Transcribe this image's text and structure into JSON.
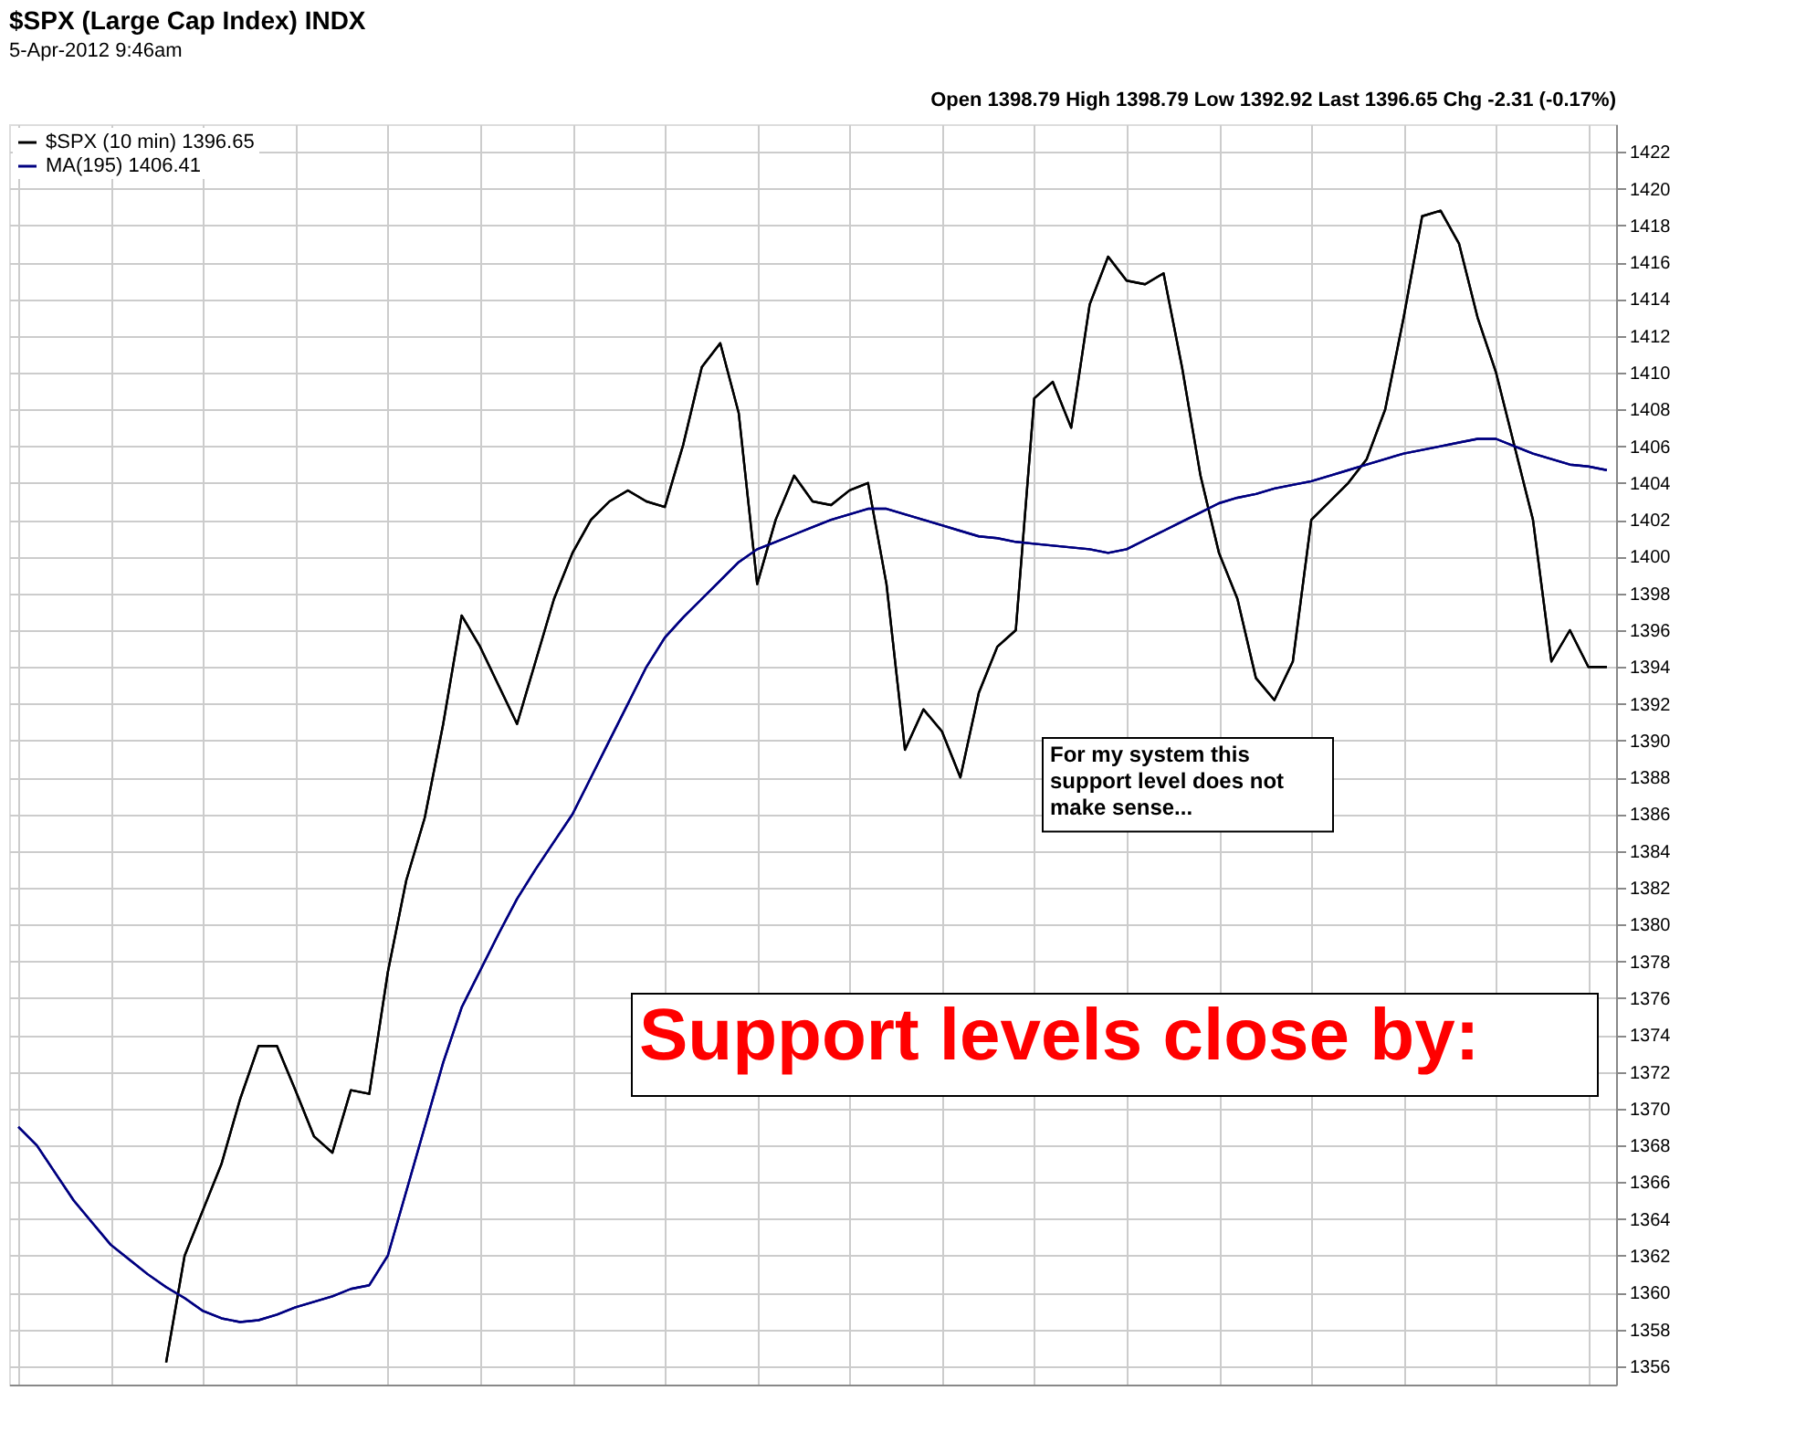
{
  "chart_data": {
    "type": "line",
    "title": "$SPX (Large Cap Index) INDX",
    "subtitle": "5-Apr-2012 9:46am",
    "annotations": [
      "Open 1398.79 High 1398.79 Low 1392.92 Last 1396.65 Chg -2.31 (-0.17%)",
      "For my system this support level does not make sense...",
      "Support levels close by:"
    ],
    "categories": [
      null,
      null,
      null,
      null,
      null,
      null,
      null,
      null,
      null,
      null,
      null,
      null,
      null,
      null,
      null,
      null,
      null,
      null,
      null,
      null,
      null,
      null,
      null,
      null,
      null,
      null,
      null,
      null,
      null,
      null,
      null,
      null,
      null,
      null,
      null,
      null,
      null,
      null,
      null,
      null,
      null,
      null,
      null,
      null,
      null,
      null,
      null,
      null,
      null,
      null,
      null,
      null,
      null,
      null,
      null,
      null,
      null,
      null,
      null,
      null,
      null,
      null,
      null,
      null,
      null,
      null,
      null,
      null,
      null,
      null,
      null,
      null,
      null,
      null,
      null,
      null,
      null,
      null,
      null,
      null,
      null,
      null,
      null,
      null,
      null,
      null,
      null
    ],
    "series": [
      {
        "name": "$SPX (10 min) 1396.65",
        "color": "#000000",
        "values": [
          null,
          null,
          null,
          null,
          null,
          null,
          null,
          null,
          1356.2,
          1362,
          1364.5,
          1367,
          1370.5,
          1373.4,
          1373.4,
          1371,
          1368.5,
          1367.6,
          1371,
          1370.8,
          1377.4,
          1382.4,
          1385.8,
          1390.9,
          1396.8,
          1395.1,
          1393,
          1390.9,
          1394.3,
          1397.7,
          1400.2,
          1402,
          1403,
          1403.6,
          1403,
          1402.7,
          1406.1,
          1410.3,
          1411.6,
          1407.8,
          1398.5,
          1402,
          1404.4,
          1403,
          1402.8,
          1403.6,
          1404,
          1398.5,
          1389.5,
          1391.7,
          1390.5,
          1388,
          1392.6,
          1395.1,
          1396,
          1408.6,
          1409.5,
          1407,
          1413.7,
          1416.3,
          1415,
          1414.8,
          1415.4,
          1410.3,
          1404.4,
          1400.2,
          1397.7,
          1393.4,
          1392.2,
          1394.3,
          1402,
          1403,
          1404,
          1405.3,
          1408,
          1413,
          1418.5,
          1418.8,
          1417,
          1413,
          1410,
          1406,
          1402,
          1394.3,
          1396,
          1394,
          1394
        ]
      },
      {
        "name": "MA(195) 1406.41",
        "color": "#000080",
        "values": [
          1369,
          1368,
          1366.5,
          1365,
          1363.8,
          1362.6,
          1361.8,
          1361,
          1360.3,
          1359.7,
          1359,
          1358.6,
          1358.4,
          1358.5,
          1358.8,
          1359.2,
          1359.5,
          1359.8,
          1360.2,
          1360.4,
          1362,
          1365.5,
          1369,
          1372.5,
          1375.5,
          1377.5,
          1379.5,
          1381.4,
          1383,
          1384.5,
          1386,
          1388,
          1390,
          1392,
          1394,
          1395.6,
          1396.7,
          1397.7,
          1398.7,
          1399.7,
          1400.4,
          1400.8,
          1401.2,
          1401.6,
          1402,
          1402.3,
          1402.6,
          1402.6,
          1402.3,
          1402,
          1401.7,
          1401.4,
          1401.1,
          1401,
          1400.8,
          1400.7,
          1400.6,
          1400.5,
          1400.4,
          1400.2,
          1400.4,
          1400.9,
          1401.4,
          1401.9,
          1402.4,
          1402.9,
          1403.2,
          1403.4,
          1403.7,
          1403.9,
          1404.1,
          1404.4,
          1404.7,
          1405,
          1405.3,
          1405.6,
          1405.8,
          1406,
          1406.2,
          1406.4,
          1406.4,
          1406,
          1405.6,
          1405.3,
          1405,
          1404.9,
          1404.7
        ]
      }
    ],
    "ylim": [
      1355,
      1423.5
    ],
    "yticks": [
      1356,
      1358,
      1360,
      1362,
      1364,
      1366,
      1368,
      1370,
      1372,
      1374,
      1376,
      1378,
      1380,
      1382,
      1384,
      1386,
      1388,
      1390,
      1392,
      1394,
      1396,
      1398,
      1400,
      1402,
      1404,
      1406,
      1408,
      1410,
      1412,
      1414,
      1416,
      1418,
      1420,
      1422
    ],
    "grid": true,
    "legend": "top left",
    "tick_labels": "y"
  }
}
